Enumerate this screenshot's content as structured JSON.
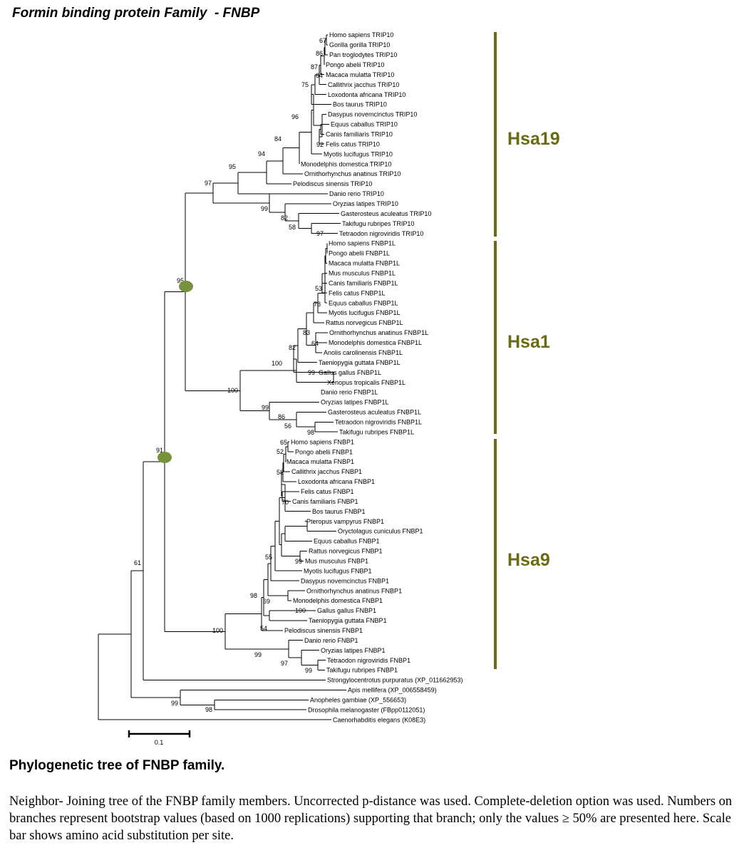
{
  "title": "Formin binding protein Family  - FNBP",
  "accent_color": "#6b6a14",
  "node_marker_color": "#77923c",
  "clades": [
    "Hsa19",
    "Hsa1",
    "Hsa9"
  ],
  "scale_bar": "0.1",
  "leaves": [
    "Homo sapiens TRIP10",
    "Gorilla gorilla TRIP10",
    "Pan troglodytes TRIP10",
    "Pongo abelii TRIP10",
    "Macaca mulatta TRIP10",
    "Callithrix jacchus TRIP10",
    "Loxodonta africana TRIP10",
    "Bos taurus TRIP10",
    "Dasypus novemcinctus TRIP10",
    "Equus caballus TRIP10",
    "Canis familiaris TRIP10",
    "Felis catus TRIP10",
    "Myotis lucifugus TRIP10",
    "Monodelphis domestica TRIP10",
    "Ornithorhynchus anatinus TRIP10",
    "Pelodiscus sinensis TRIP10",
    "Danio rerio TRIP10",
    "Oryzias latipes TRIP10",
    "Gasterosteus aculeatus TRIP10",
    "Takifugu rubripes TRIP10",
    "Tetraodon nigroviridis TRIP10",
    "Homo sapiens FNBP1L",
    "Pongo abelii FNBP1L",
    "Macaca mulatta FNBP1L",
    "Mus musculus FNBP1L",
    "Canis familiaris FNBP1L",
    "Felis catus FNBP1L",
    "Equus caballus FNBP1L",
    "Myotis lucifugus FNBP1L",
    "Rattus norvegicus FNBP1L",
    "Ornithorhynchus anatinus FNBP1L",
    "Monodelphis domestica FNBP1L",
    "Anolis carolinensis FNBP1L",
    "Taeniopygia guttata FNBP1L",
    "Gallus gallus FNBP1L",
    "Xenopus tropicalis FNBP1L",
    "Danio rerio FNBP1L",
    "Oryzias latipes FNBP1L",
    "Gasterosteus aculeatus FNBP1L",
    "Tetraodon nigroviridis FNBP1L",
    "Takifugu rubripes FNBP1L",
    "Homo sapiens FNBP1",
    "Pongo abelii FNBP1",
    "Macaca mulatta FNBP1",
    "Callithrix jacchus FNBP1",
    "Loxodonta africana FNBP1",
    "Felis catus FNBP1",
    "Canis familiaris FNBP1",
    "Bos taurus FNBP1",
    "Pteropus vampyrus FNBP1",
    "Oryctolagus cuniculus FNBP1",
    "Equus caballus FNBP1",
    "Rattus norvegicus FNBP1",
    "Mus musculus FNBP1",
    "Myotis lucifugus FNBP1",
    "Dasypus novemcinctus FNBP1",
    "Ornithorhynchus anatinus FNBP1",
    "Monodelphis domestica FNBP1",
    "Gallus gallus FNBP1",
    "Taeniopygia guttata FNBP1",
    "Pelodiscus sinensis FNBP1",
    "Danio rerio FNBP1",
    "Oryzias latipes FNBP1",
    "Tetraodon nigroviridis FNBP1",
    "Takifugu rubripes FNBP1",
    "Strongylocentrotus purpuratus (XP_011662953)",
    "Apis mellifera (XP_006558459)",
    "Anopheles gambiae (XP_556653)",
    "Drosophila melanogaster (FBpp0112051)",
    "Caenorhabditis elegans (K08E3)"
  ],
  "bootstrap_values": [
    "67",
    "86",
    "87",
    "64",
    "75",
    "96",
    "92",
    "84",
    "94",
    "95",
    "97",
    "99",
    "82",
    "58",
    "97",
    "53",
    "78",
    "83",
    "64",
    "82",
    "100",
    "99",
    "100",
    "99",
    "86",
    "56",
    "98",
    "65",
    "52",
    "58",
    "70",
    "55",
    "99",
    "98",
    "69",
    "100",
    "54",
    "100",
    "99",
    "97",
    "99",
    "61",
    "91",
    "95",
    "99",
    "98"
  ],
  "caption": {
    "title": "Phylogenetic tree of FNBP family.",
    "body": "Neighbor- Joining  tree of the FNBP family members. Uncorrected p-distance was used. Complete-deletion option was used. Numbers on branches represent bootstrap values (based on 1000 replications) supporting that branch; only the values ≥ 50% are presented here. Scale bar shows amino acid substitution per site."
  }
}
